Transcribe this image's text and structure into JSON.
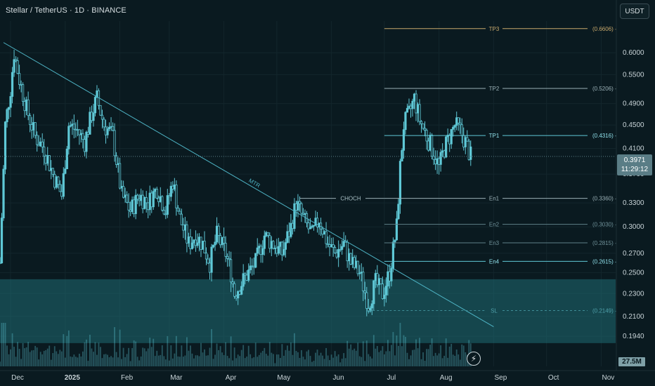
{
  "header": {
    "title": "Stellar / TetherUS · 1D · BINANCE",
    "currency_button": "USDT"
  },
  "price_label": {
    "price": "0.3971",
    "countdown": "11:29:12"
  },
  "volume_label": "27.5M",
  "flash_icon": "⚡",
  "colors": {
    "background": "#0a1a20",
    "candle": "#5fc8d6",
    "zone_fill": "#1f6b73",
    "trendline": "#4fb6c7",
    "tp_line": "#c8a86b",
    "level_line": "#9ab0b6"
  },
  "chart_data": {
    "type": "candlestick",
    "symbol": "XLMUSDT",
    "interval": "1D",
    "exchange": "BINANCE",
    "y_axis": {
      "scale": "log",
      "range": [
        0.182,
        0.72
      ],
      "ticks": [
        "0.6000",
        "0.5500",
        "0.4900",
        "0.4500",
        "0.4100",
        "0.3700",
        "0.3300",
        "0.3000",
        "0.2700",
        "0.2500",
        "0.2300",
        "0.2100",
        "0.1940"
      ]
    },
    "x_axis": {
      "range": [
        "2024-11-25",
        "2025-11-10"
      ],
      "ticks": [
        {
          "label": "Dec",
          "date": "2024-12-01",
          "bold": false
        },
        {
          "label": "2025",
          "date": "2025-01-01",
          "bold": true
        },
        {
          "label": "Feb",
          "date": "2025-02-01",
          "bold": false
        },
        {
          "label": "Mar",
          "date": "2025-03-01",
          "bold": false
        },
        {
          "label": "Apr",
          "date": "2025-04-01",
          "bold": false
        },
        {
          "label": "May",
          "date": "2025-05-01",
          "bold": false
        },
        {
          "label": "Jun",
          "date": "2025-06-01",
          "bold": false
        },
        {
          "label": "Jul",
          "date": "2025-07-01",
          "bold": false
        },
        {
          "label": "Aug",
          "date": "2025-08-01",
          "bold": false
        },
        {
          "label": "Sep",
          "date": "2025-09-01",
          "bold": false
        },
        {
          "label": "Oct",
          "date": "2025-10-01",
          "bold": false
        },
        {
          "label": "Nov",
          "date": "2025-11-01",
          "bold": false
        }
      ]
    },
    "levels": [
      {
        "label": "TP3",
        "value": "0.6606",
        "price": 0.6606,
        "start": "2025-07-01",
        "role": "tp"
      },
      {
        "label": "TP2",
        "value": "0.5206",
        "price": 0.5206,
        "start": "2025-07-01",
        "role": "level"
      },
      {
        "label": "TP1",
        "value": "0.4316",
        "price": 0.4316,
        "start": "2025-07-01",
        "role": "accent"
      },
      {
        "label": "En1",
        "value": "0.3360",
        "price": 0.336,
        "start": "2025-07-01",
        "role": "level"
      },
      {
        "label": "En2",
        "value": "0.3030",
        "price": 0.303,
        "start": "2025-07-01",
        "role": "dim"
      },
      {
        "label": "En3",
        "value": "0.2815",
        "price": 0.2815,
        "start": "2025-07-01",
        "role": "dim"
      },
      {
        "label": "En4",
        "value": "0.2615",
        "price": 0.2615,
        "start": "2025-07-01",
        "role": "accent"
      },
      {
        "label": "SL",
        "value": "0.2149",
        "price": 0.2149,
        "start": "2025-06-22",
        "role": "sl"
      }
    ],
    "choch": {
      "label": "CHOCH",
      "price": 0.336,
      "start": "2025-05-14",
      "end": "2025-07-01"
    },
    "trendline": {
      "label": "MTR",
      "start": {
        "date": "2024-11-27",
        "price": 0.625
      },
      "end": {
        "date": "2025-09-01",
        "price": 0.2015
      }
    },
    "demand_zone": {
      "top": 0.2435,
      "bottom": 0.1888
    },
    "last_price": 0.3971,
    "candles": [
      {
        "date": "2024-11-25",
        "close": 0.26
      },
      {
        "date": "2024-11-28",
        "close": 0.45
      },
      {
        "date": "2024-12-01",
        "close": 0.52
      },
      {
        "date": "2024-12-03",
        "close": 0.6
      },
      {
        "date": "2024-12-06",
        "close": 0.54
      },
      {
        "date": "2024-12-10",
        "close": 0.48
      },
      {
        "date": "2024-12-15",
        "close": 0.43
      },
      {
        "date": "2024-12-20",
        "close": 0.41
      },
      {
        "date": "2024-12-25",
        "close": 0.37
      },
      {
        "date": "2024-12-30",
        "close": 0.34
      },
      {
        "date": "2025-01-03",
        "close": 0.45
      },
      {
        "date": "2025-01-08",
        "close": 0.44
      },
      {
        "date": "2025-01-12",
        "close": 0.42
      },
      {
        "date": "2025-01-16",
        "close": 0.47
      },
      {
        "date": "2025-01-19",
        "close": 0.5
      },
      {
        "date": "2025-01-23",
        "close": 0.45
      },
      {
        "date": "2025-01-28",
        "close": 0.43
      },
      {
        "date": "2025-02-02",
        "close": 0.34
      },
      {
        "date": "2025-02-07",
        "close": 0.32
      },
      {
        "date": "2025-02-12",
        "close": 0.34
      },
      {
        "date": "2025-02-17",
        "close": 0.33
      },
      {
        "date": "2025-02-22",
        "close": 0.35
      },
      {
        "date": "2025-02-27",
        "close": 0.32
      },
      {
        "date": "2025-03-03",
        "close": 0.36
      },
      {
        "date": "2025-03-07",
        "close": 0.31
      },
      {
        "date": "2025-03-12",
        "close": 0.28
      },
      {
        "date": "2025-03-16",
        "close": 0.29
      },
      {
        "date": "2025-03-20",
        "close": 0.28
      },
      {
        "date": "2025-03-24",
        "close": 0.26
      },
      {
        "date": "2025-03-28",
        "close": 0.29
      },
      {
        "date": "2025-04-02",
        "close": 0.27
      },
      {
        "date": "2025-04-05",
        "close": 0.25
      },
      {
        "date": "2025-04-07",
        "close": 0.23
      },
      {
        "date": "2025-04-11",
        "close": 0.24
      },
      {
        "date": "2025-04-15",
        "close": 0.25
      },
      {
        "date": "2025-04-19",
        "close": 0.26
      },
      {
        "date": "2025-04-24",
        "close": 0.29
      },
      {
        "date": "2025-04-29",
        "close": 0.28
      },
      {
        "date": "2025-05-04",
        "close": 0.27
      },
      {
        "date": "2025-05-09",
        "close": 0.3
      },
      {
        "date": "2025-05-12",
        "close": 0.33
      },
      {
        "date": "2025-05-16",
        "close": 0.31
      },
      {
        "date": "2025-05-21",
        "close": 0.29
      },
      {
        "date": "2025-05-25",
        "close": 0.31
      },
      {
        "date": "2025-05-30",
        "close": 0.28
      },
      {
        "date": "2025-06-03",
        "close": 0.27
      },
      {
        "date": "2025-06-08",
        "close": 0.28
      },
      {
        "date": "2025-06-12",
        "close": 0.26
      },
      {
        "date": "2025-06-17",
        "close": 0.25
      },
      {
        "date": "2025-06-22",
        "close": 0.22
      },
      {
        "date": "2025-06-26",
        "close": 0.24
      },
      {
        "date": "2025-06-30",
        "close": 0.23
      },
      {
        "date": "2025-07-04",
        "close": 0.25
      },
      {
        "date": "2025-07-08",
        "close": 0.3
      },
      {
        "date": "2025-07-10",
        "close": 0.38
      },
      {
        "date": "2025-07-12",
        "close": 0.45
      },
      {
        "date": "2025-07-15",
        "close": 0.47
      },
      {
        "date": "2025-07-18",
        "close": 0.5
      },
      {
        "date": "2025-07-21",
        "close": 0.46
      },
      {
        "date": "2025-07-25",
        "close": 0.43
      },
      {
        "date": "2025-07-28",
        "close": 0.41
      },
      {
        "date": "2025-08-01",
        "close": 0.38
      },
      {
        "date": "2025-08-04",
        "close": 0.41
      },
      {
        "date": "2025-08-07",
        "close": 0.43
      },
      {
        "date": "2025-08-10",
        "close": 0.45
      },
      {
        "date": "2025-08-13",
        "close": 0.44
      },
      {
        "date": "2025-08-16",
        "close": 0.42
      },
      {
        "date": "2025-08-19",
        "close": 0.3971
      }
    ]
  }
}
